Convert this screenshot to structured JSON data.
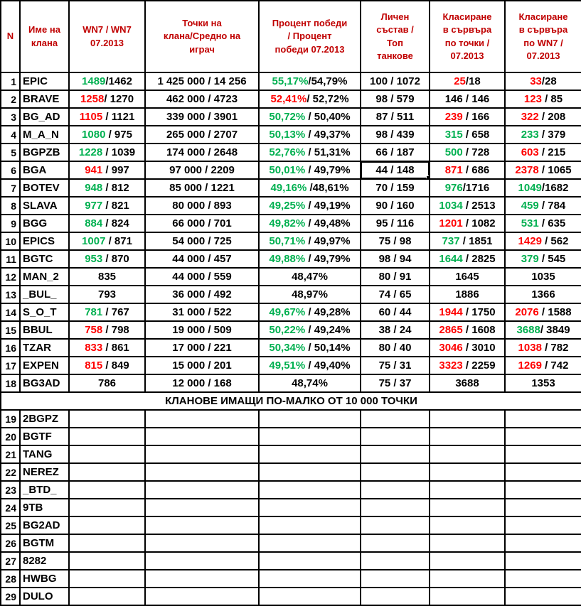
{
  "colors": {
    "header_text": "#C00000",
    "positive": "#00B050",
    "negative": "#FF0000",
    "neutral": "#000000",
    "grid": "#000000",
    "background": "#FFFFFF"
  },
  "table": {
    "headers": [
      "N",
      "Име на\nклана",
      "WN7 / WN7\n07.2013",
      "Точки на\nклана/Средно на\nиграч",
      "Процент победи\n/ Процент\nпобеди 07.2013",
      "Личен\nсъстав /\nТоп\nтанкове",
      "Класиране\nв сървъра\nпо точки /\n07.2013",
      "Класиране\nв сървъра\nпо WN7 /\n07.2013"
    ],
    "separator_label": "КЛАНОВЕ ИМАЩИ ПО-МАЛКО ОТ 10 000 ТОЧКИ",
    "rows": [
      {
        "n": "1",
        "name": "EPIC",
        "wn7": [
          {
            "t": "1489",
            "c": "g"
          },
          {
            "t": "/1462",
            "c": "k"
          }
        ],
        "pts": "1 425 000 / 14 256",
        "win": [
          {
            "t": "55,17%",
            "c": "g"
          },
          {
            "t": "/54,79%",
            "c": "k"
          }
        ],
        "staff": "100 / 1072",
        "rp": [
          {
            "t": "25",
            "c": "r"
          },
          {
            "t": "/18",
            "c": "k"
          }
        ],
        "rw": [
          {
            "t": "33",
            "c": "r"
          },
          {
            "t": "/28",
            "c": "k"
          }
        ]
      },
      {
        "n": "2",
        "name": "BRAVE",
        "wn7": [
          {
            "t": "1258",
            "c": "r"
          },
          {
            "t": "/ 1270",
            "c": "k"
          }
        ],
        "pts": "462 000 / 4723",
        "win": [
          {
            "t": "52,41%",
            "c": "r"
          },
          {
            "t": "/ 52,72%",
            "c": "k"
          }
        ],
        "staff": "98 / 579",
        "rp": [
          {
            "t": "146 / 146",
            "c": "k"
          }
        ],
        "rw": [
          {
            "t": "123",
            "c": "r"
          },
          {
            "t": " / 85",
            "c": "k"
          }
        ]
      },
      {
        "n": "3",
        "name": "BG_AD",
        "wn7": [
          {
            "t": "1105",
            "c": "r"
          },
          {
            "t": " / 1121",
            "c": "k"
          }
        ],
        "pts": "339 000 / 3901",
        "win": [
          {
            "t": "50,72%",
            "c": "g"
          },
          {
            "t": " / 50,40%",
            "c": "k"
          }
        ],
        "staff": "87 / 511",
        "rp": [
          {
            "t": "239",
            "c": "r"
          },
          {
            "t": " / 166",
            "c": "k"
          }
        ],
        "rw": [
          {
            "t": "322",
            "c": "r"
          },
          {
            "t": " / 208",
            "c": "k"
          }
        ]
      },
      {
        "n": "4",
        "name": "M_A_N",
        "wn7": [
          {
            "t": "1080",
            "c": "g"
          },
          {
            "t": " / 975",
            "c": "k"
          }
        ],
        "pts": "265 000 / 2707",
        "win": [
          {
            "t": "50,13%",
            "c": "g"
          },
          {
            "t": " / 49,37%",
            "c": "k"
          }
        ],
        "staff": "98 / 439",
        "rp": [
          {
            "t": "315",
            "c": "g"
          },
          {
            "t": " / 658",
            "c": "k"
          }
        ],
        "rw": [
          {
            "t": "233",
            "c": "g"
          },
          {
            "t": " / 379",
            "c": "k"
          }
        ]
      },
      {
        "n": "5",
        "name": "BGPZB",
        "wn7": [
          {
            "t": "1228",
            "c": "g"
          },
          {
            "t": " / 1039",
            "c": "k"
          }
        ],
        "pts": "174 000 / 2648",
        "win": [
          {
            "t": "52,76%",
            "c": "g"
          },
          {
            "t": " / 51,31%",
            "c": "k"
          }
        ],
        "staff": "66 / 187",
        "rp": [
          {
            "t": "500",
            "c": "g"
          },
          {
            "t": " / 728",
            "c": "k"
          }
        ],
        "rw": [
          {
            "t": "603",
            "c": "r"
          },
          {
            "t": " / 215",
            "c": "k"
          }
        ]
      },
      {
        "n": "6",
        "name": "BGA",
        "wn7": [
          {
            "t": "941",
            "c": "r"
          },
          {
            "t": " / 997",
            "c": "k"
          }
        ],
        "pts": "97 000 / 2209",
        "win": [
          {
            "t": "50,01%",
            "c": "g"
          },
          {
            "t": " / 49,79%",
            "c": "k"
          }
        ],
        "staff": "44 / 148",
        "selected": true,
        "rp": [
          {
            "t": "871",
            "c": "r"
          },
          {
            "t": " / 686",
            "c": "k"
          }
        ],
        "rw": [
          {
            "t": "2378",
            "c": "r"
          },
          {
            "t": " / 1065",
            "c": "k"
          }
        ]
      },
      {
        "n": "7",
        "name": "BOTEV",
        "wn7": [
          {
            "t": "948",
            "c": "g"
          },
          {
            "t": " / 812",
            "c": "k"
          }
        ],
        "pts": "85 000 / 1221",
        "win": [
          {
            "t": "49,16%",
            "c": "g"
          },
          {
            "t": " /48,61%",
            "c": "k"
          }
        ],
        "staff": "70 / 159",
        "rp": [
          {
            "t": "976",
            "c": "g"
          },
          {
            "t": "/1716",
            "c": "k"
          }
        ],
        "rw": [
          {
            "t": "1049",
            "c": "g"
          },
          {
            "t": "/1682",
            "c": "k"
          }
        ]
      },
      {
        "n": "8",
        "name": "SLAVA",
        "wn7": [
          {
            "t": "977",
            "c": "g"
          },
          {
            "t": " / 821",
            "c": "k"
          }
        ],
        "pts": "80 000 / 893",
        "win": [
          {
            "t": "49,25%",
            "c": "g"
          },
          {
            "t": " / 49,19%",
            "c": "k"
          }
        ],
        "staff": "90 / 160",
        "rp": [
          {
            "t": "1034",
            "c": "g"
          },
          {
            "t": " / 2513",
            "c": "k"
          }
        ],
        "rw": [
          {
            "t": "459",
            "c": "g"
          },
          {
            "t": " / 784",
            "c": "k"
          }
        ]
      },
      {
        "n": "9",
        "name": "BGG",
        "wn7": [
          {
            "t": "884",
            "c": "g"
          },
          {
            "t": " / 824",
            "c": "k"
          }
        ],
        "pts": "66 000 / 701",
        "win": [
          {
            "t": "49,82%",
            "c": "g"
          },
          {
            "t": " / 49,48%",
            "c": "k"
          }
        ],
        "staff": "95 / 116",
        "rp": [
          {
            "t": "1201",
            "c": "r"
          },
          {
            "t": " / 1082",
            "c": "k"
          }
        ],
        "rw": [
          {
            "t": "531",
            "c": "g"
          },
          {
            "t": " / 635",
            "c": "k"
          }
        ]
      },
      {
        "n": "10",
        "name": "EPICS",
        "wn7": [
          {
            "t": "1007",
            "c": "g"
          },
          {
            "t": " / 871",
            "c": "k"
          }
        ],
        "pts": "54 000 / 725",
        "win": [
          {
            "t": "50,71%",
            "c": "g"
          },
          {
            "t": " / 49,97%",
            "c": "k"
          }
        ],
        "staff": "75 / 98",
        "rp": [
          {
            "t": "737",
            "c": "g"
          },
          {
            "t": " / 1851",
            "c": "k"
          }
        ],
        "rw": [
          {
            "t": "1429",
            "c": "r"
          },
          {
            "t": " / 562",
            "c": "k"
          }
        ]
      },
      {
        "n": "11",
        "name": "BGTC",
        "wn7": [
          {
            "t": "953",
            "c": "g"
          },
          {
            "t": " / 870",
            "c": "k"
          }
        ],
        "pts": "44 000 / 457",
        "win": [
          {
            "t": "49,88%",
            "c": "g"
          },
          {
            "t": " / 49,79%",
            "c": "k"
          }
        ],
        "staff": "98 / 94",
        "rp": [
          {
            "t": "1644",
            "c": "g"
          },
          {
            "t": " / 2825",
            "c": "k"
          }
        ],
        "rw": [
          {
            "t": "379",
            "c": "g"
          },
          {
            "t": " / 545",
            "c": "k"
          }
        ]
      },
      {
        "n": "12",
        "name": "MAN_2",
        "wn7": [
          {
            "t": "835",
            "c": "k"
          }
        ],
        "pts": "44 000 / 559",
        "win": [
          {
            "t": "48,47%",
            "c": "k"
          }
        ],
        "staff": "80 / 91",
        "rp": [
          {
            "t": "1645",
            "c": "k"
          }
        ],
        "rw": [
          {
            "t": "1035",
            "c": "k"
          }
        ]
      },
      {
        "n": "13",
        "name": "_BUL_",
        "wn7": [
          {
            "t": "793",
            "c": "k"
          }
        ],
        "pts": "36 000 / 492",
        "win": [
          {
            "t": "48,97%",
            "c": "k"
          }
        ],
        "staff": "74 / 65",
        "rp": [
          {
            "t": "1886",
            "c": "k"
          }
        ],
        "rw": [
          {
            "t": "1366",
            "c": "k"
          }
        ]
      },
      {
        "n": "14",
        "name": "S_O_T",
        "wn7": [
          {
            "t": "781",
            "c": "g"
          },
          {
            "t": " / 767",
            "c": "k"
          }
        ],
        "pts": "31 000 / 522",
        "win": [
          {
            "t": "49,67%",
            "c": "g"
          },
          {
            "t": " / 49,28%",
            "c": "k"
          }
        ],
        "staff": "60 / 44",
        "rp": [
          {
            "t": "1944",
            "c": "r"
          },
          {
            "t": " / 1750",
            "c": "k"
          }
        ],
        "rw": [
          {
            "t": "2076",
            "c": "r"
          },
          {
            "t": " / 1588",
            "c": "k"
          }
        ]
      },
      {
        "n": "15",
        "name": "BBUL",
        "wn7": [
          {
            "t": "758",
            "c": "r"
          },
          {
            "t": " / 798",
            "c": "k"
          }
        ],
        "pts": "19 000 / 509",
        "win": [
          {
            "t": "50,22%",
            "c": "g"
          },
          {
            "t": " / 49,24%",
            "c": "k"
          }
        ],
        "staff": "38 / 24",
        "rp": [
          {
            "t": "2865",
            "c": "r"
          },
          {
            "t": " / 1608",
            "c": "k"
          }
        ],
        "rw": [
          {
            "t": "3688",
            "c": "g"
          },
          {
            "t": "/ 3849",
            "c": "k"
          }
        ]
      },
      {
        "n": "16",
        "name": "TZAR",
        "wn7": [
          {
            "t": "833",
            "c": "r"
          },
          {
            "t": " / 861",
            "c": "k"
          }
        ],
        "pts": "17 000 / 221",
        "win": [
          {
            "t": "50,34%",
            "c": "g"
          },
          {
            "t": " / 50,14%",
            "c": "k"
          }
        ],
        "staff": "80 / 40",
        "rp": [
          {
            "t": "3046",
            "c": "r"
          },
          {
            "t": " / 3010",
            "c": "k"
          }
        ],
        "rw": [
          {
            "t": "1038",
            "c": "r"
          },
          {
            "t": " / 782",
            "c": "k"
          }
        ]
      },
      {
        "n": "17",
        "name": "EXPEN",
        "wn7": [
          {
            "t": "815",
            "c": "r"
          },
          {
            "t": " / 849",
            "c": "k"
          }
        ],
        "pts": "15 000 / 201",
        "win": [
          {
            "t": "49,51%",
            "c": "g"
          },
          {
            "t": " / 49,40%",
            "c": "k"
          }
        ],
        "staff": "75 / 31",
        "rp": [
          {
            "t": "3323",
            "c": "r"
          },
          {
            "t": " / 2259",
            "c": "k"
          }
        ],
        "rw": [
          {
            "t": "1269",
            "c": "r"
          },
          {
            "t": " / 742",
            "c": "k"
          }
        ]
      },
      {
        "n": "18",
        "name": "BG3AD",
        "wn7": [
          {
            "t": "786",
            "c": "k"
          }
        ],
        "pts": "12 000 / 168",
        "win": [
          {
            "t": "48,74%",
            "c": "k"
          }
        ],
        "staff": "75 / 37",
        "rp": [
          {
            "t": "3688",
            "c": "k"
          }
        ],
        "rw": [
          {
            "t": "1353",
            "c": "k"
          }
        ]
      }
    ],
    "empty_rows": [
      {
        "n": "19",
        "name": "2BGPZ"
      },
      {
        "n": "20",
        "name": "BGTF"
      },
      {
        "n": "21",
        "name": "TANG"
      },
      {
        "n": "22",
        "name": "NEREZ"
      },
      {
        "n": "23",
        "name": "_BTD_"
      },
      {
        "n": "24",
        "name": "9TB"
      },
      {
        "n": "25",
        "name": "BG2AD"
      },
      {
        "n": "26",
        "name": "BGTM"
      },
      {
        "n": "27",
        "name": "8282"
      },
      {
        "n": "28",
        "name": "HWBG"
      },
      {
        "n": "29",
        "name": "DULO"
      }
    ]
  }
}
